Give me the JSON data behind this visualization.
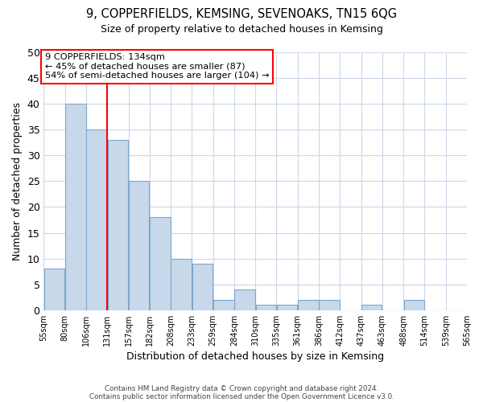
{
  "title": "9, COPPERFIELDS, KEMSING, SEVENOAKS, TN15 6QG",
  "subtitle": "Size of property relative to detached houses in Kemsing",
  "xlabel": "Distribution of detached houses by size in Kemsing",
  "ylabel": "Number of detached properties",
  "bar_color": "#c8d8eb",
  "bar_edge_color": "#7aa8cc",
  "bar_values": [
    8,
    40,
    35,
    33,
    25,
    18,
    10,
    9,
    2,
    4,
    1,
    1,
    2,
    2,
    0,
    1,
    0,
    2,
    0,
    0
  ],
  "bin_labels": [
    "55sqm",
    "80sqm",
    "106sqm",
    "131sqm",
    "157sqm",
    "182sqm",
    "208sqm",
    "233sqm",
    "259sqm",
    "284sqm",
    "310sqm",
    "335sqm",
    "361sqm",
    "386sqm",
    "412sqm",
    "437sqm",
    "463sqm",
    "488sqm",
    "514sqm",
    "539sqm",
    "565sqm"
  ],
  "ylim": [
    0,
    50
  ],
  "yticks": [
    0,
    5,
    10,
    15,
    20,
    25,
    30,
    35,
    40,
    45,
    50
  ],
  "annotation_title": "9 COPPERFIELDS: 134sqm",
  "annotation_line1": "← 45% of detached houses are smaller (87)",
  "annotation_line2": "54% of semi-detached houses are larger (104) →",
  "vline_bin": 3,
  "footer1": "Contains HM Land Registry data © Crown copyright and database right 2024.",
  "footer2": "Contains public sector information licensed under the Open Government Licence v3.0.",
  "background_color": "#ffffff",
  "grid_color": "#ccd8e8"
}
